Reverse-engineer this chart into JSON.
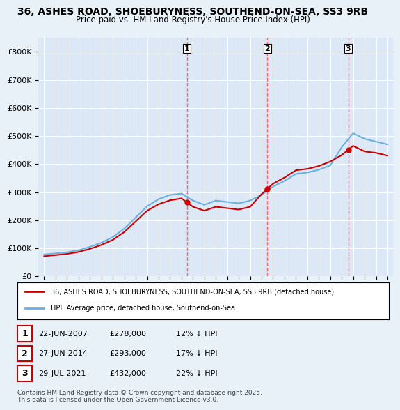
{
  "title": "36, ASHES ROAD, SHOEBURYNESS, SOUTHEND-ON-SEA, SS3 9RB",
  "subtitle": "Price paid vs. HM Land Registry's House Price Index (HPI)",
  "ylabel": "",
  "ylim": [
    0,
    850000
  ],
  "yticks": [
    0,
    100000,
    200000,
    300000,
    400000,
    500000,
    600000,
    700000,
    800000
  ],
  "ytick_labels": [
    "£0",
    "£100K",
    "£200K",
    "£300K",
    "£400K",
    "£500K",
    "£600K",
    "£700K",
    "£800K"
  ],
  "hpi_color": "#6ab0e0",
  "price_color": "#cc0000",
  "dashed_color": "#ff6666",
  "background_color": "#e8f0f8",
  "plot_bg_color": "#dce8f5",
  "transactions": [
    {
      "num": 1,
      "date": "22-JUN-2007",
      "price": 278000,
      "pct": "12%",
      "x_year": 2007.47
    },
    {
      "num": 2,
      "date": "27-JUN-2014",
      "price": 293000,
      "pct": "17%",
      "x_year": 2014.49
    },
    {
      "num": 3,
      "date": "29-JUL-2021",
      "price": 432000,
      "pct": "22%",
      "x_year": 2021.57
    }
  ],
  "legend_line1": "36, ASHES ROAD, SHOEBURYNESS, SOUTHEND-ON-SEA, SS3 9RB (detached house)",
  "legend_line2": "HPI: Average price, detached house, Southend-on-Sea",
  "footnote": "Contains HM Land Registry data © Crown copyright and database right 2025.\nThis data is licensed under the Open Government Licence v3.0.",
  "hpi_years": [
    1995,
    1996,
    1997,
    1998,
    1999,
    2000,
    2001,
    2002,
    2003,
    2004,
    2005,
    2006,
    2007,
    2008,
    2009,
    2010,
    2011,
    2012,
    2013,
    2014,
    2015,
    2016,
    2017,
    2018,
    2019,
    2020,
    2021,
    2022,
    2023,
    2024,
    2025
  ],
  "hpi_values": [
    78000,
    82000,
    86000,
    93000,
    105000,
    120000,
    140000,
    170000,
    210000,
    250000,
    275000,
    290000,
    295000,
    270000,
    255000,
    270000,
    265000,
    260000,
    270000,
    290000,
    320000,
    340000,
    365000,
    370000,
    380000,
    395000,
    460000,
    510000,
    490000,
    480000,
    470000
  ],
  "price_years": [
    1995,
    1996,
    1997,
    1998,
    1999,
    2000,
    2001,
    2002,
    2003,
    2004,
    2005,
    2006,
    2007,
    2008,
    2009,
    2010,
    2011,
    2012,
    2013,
    2014,
    2015,
    2016,
    2017,
    2018,
    2019,
    2020,
    2021,
    2022,
    2023,
    2024,
    2025
  ],
  "price_values": [
    72000,
    76000,
    80000,
    87000,
    98000,
    112000,
    130000,
    158000,
    196000,
    234000,
    257000,
    271000,
    278000,
    248000,
    234000,
    248000,
    243000,
    238000,
    248000,
    293000,
    330000,
    352000,
    378000,
    383000,
    393000,
    409000,
    432000,
    465000,
    445000,
    440000,
    430000
  ],
  "xlim": [
    1994.5,
    2025.5
  ]
}
